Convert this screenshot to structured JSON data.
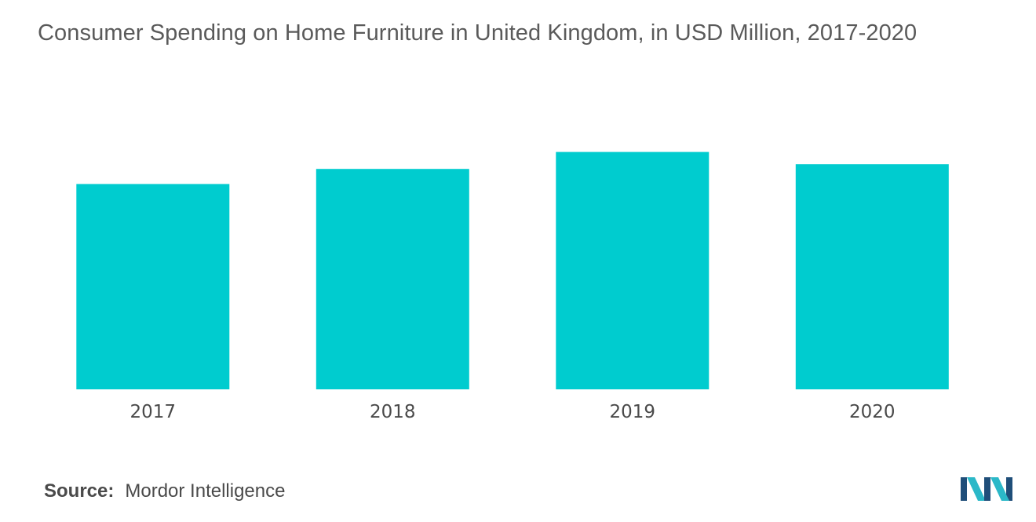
{
  "chart_data": {
    "type": "bar",
    "title": "Consumer Spending on Home Furniture in United Kingdom, in USD Million, 2017-2020",
    "categories": [
      "2017",
      "2018",
      "2019",
      "2020"
    ],
    "values": [
      218,
      234,
      252,
      239
    ],
    "xlabel": "",
    "ylabel": "",
    "ylim": [
      0,
      300
    ],
    "grid": false,
    "legend": "none",
    "bar_color": "#00cccf"
  },
  "source": {
    "label": "Source:",
    "value": "Mordor Intelligence"
  },
  "logo": {
    "icon": "mordor-intelligence-logo-icon",
    "colors": [
      "#1f4e79",
      "#2bb8c8"
    ]
  }
}
